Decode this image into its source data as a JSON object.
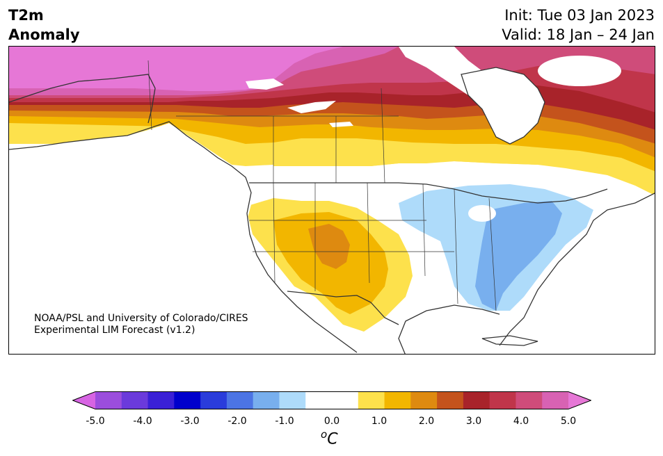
{
  "header": {
    "title_line1": "T2m",
    "title_line2": "Anomaly",
    "init": "Init: Tue 03 Jan 2023",
    "valid": "Valid: 18 Jan – 24 Jan"
  },
  "map": {
    "credit_line1": "NOAA/PSL and University of Colorado/CIRES",
    "credit_line2": "Experimental LIM Forecast (v1.2)"
  },
  "colorbar": {
    "unit_base": "C",
    "unit_sup": "o",
    "ticks": [
      "-5.0",
      "-4.0",
      "-3.0",
      "-2.0",
      "-1.0",
      "0.0",
      "1.0",
      "2.0",
      "3.0",
      "4.0",
      "5.0"
    ],
    "colors": [
      "#d764e3",
      "#9b4ddd",
      "#6b3adb",
      "#3a20d6",
      "#0000cc",
      "#2a3cdb",
      "#4c74e4",
      "#78afee",
      "#aedbfa",
      "#ffffff",
      "#ffffff",
      "#fde14c",
      "#f2b600",
      "#de8a10",
      "#c4531c",
      "#a8232a",
      "#c0354a",
      "#cf4c7a",
      "#d862b3",
      "#e677d6"
    ]
  }
}
